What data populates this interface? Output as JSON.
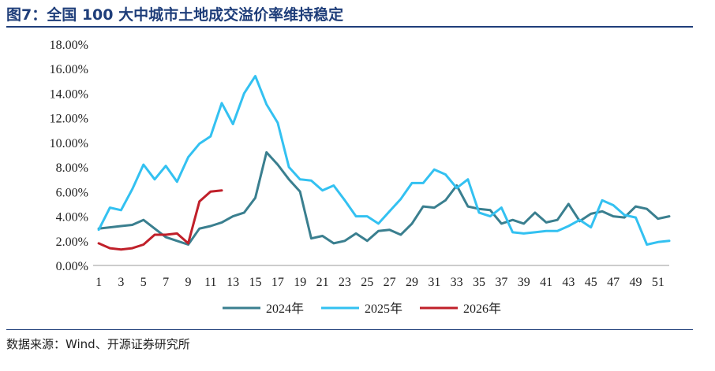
{
  "header": {
    "title": "图7：全国 100 大中城市土地成交溢价率维持稳定"
  },
  "footer": {
    "source": "数据来源：Wind、开源证券研究所"
  },
  "chart_data": {
    "type": "line",
    "title": "图7：全国 100 大中城市土地成交溢价率维持稳定",
    "xlabel": "",
    "ylabel": "",
    "ylim": [
      0,
      18
    ],
    "y_ticks": [
      "0.00%",
      "2.00%",
      "4.00%",
      "6.00%",
      "8.00%",
      "10.00%",
      "12.00%",
      "14.00%",
      "16.00%",
      "18.00%"
    ],
    "x_ticks": [
      "1",
      "3",
      "5",
      "7",
      "9",
      "11",
      "13",
      "15",
      "17",
      "19",
      "21",
      "23",
      "25",
      "27",
      "29",
      "31",
      "33",
      "35",
      "37",
      "39",
      "41",
      "43",
      "45",
      "47",
      "49",
      "51"
    ],
    "legend_position": "bottom",
    "grid": false,
    "series": [
      {
        "name": "2024年",
        "color": "#3a7f8f",
        "values": [
          3.0,
          3.1,
          3.2,
          3.3,
          3.7,
          3.0,
          2.3,
          2.0,
          1.7,
          3.0,
          3.2,
          3.5,
          4.0,
          4.3,
          5.5,
          9.2,
          8.2,
          7.0,
          6.0,
          2.2,
          2.4,
          1.8,
          2.0,
          2.6,
          2.0,
          2.8,
          2.9,
          2.5,
          3.4,
          4.8,
          4.7,
          5.3,
          6.5,
          4.8,
          4.6,
          4.5,
          3.4,
          3.7,
          3.4,
          4.3,
          3.5,
          3.7,
          5.0,
          3.6,
          4.2,
          4.4,
          4.0,
          3.9,
          4.8,
          4.6,
          3.8,
          4.0
        ]
      },
      {
        "name": "2025年",
        "color": "#33c1f1",
        "values": [
          2.9,
          4.7,
          4.5,
          6.2,
          8.2,
          7.0,
          8.1,
          6.8,
          8.8,
          9.9,
          10.5,
          13.2,
          11.5,
          14.0,
          15.4,
          13.1,
          11.6,
          8.0,
          7.0,
          6.9,
          6.1,
          6.5,
          5.3,
          4.0,
          4.0,
          3.4,
          4.4,
          5.4,
          6.7,
          6.7,
          7.8,
          7.4,
          6.3,
          7.0,
          4.3,
          4.0,
          4.7,
          2.7,
          2.6,
          2.7,
          2.8,
          2.8,
          3.2,
          3.7,
          3.1,
          5.3,
          4.9,
          4.1,
          3.9,
          1.7,
          1.9,
          2.0
        ]
      },
      {
        "name": "2026年",
        "color": "#c0202a",
        "values": [
          1.8,
          1.4,
          1.3,
          1.4,
          1.7,
          2.5,
          2.5,
          2.6,
          1.8,
          5.2,
          6.0,
          6.1
        ]
      }
    ]
  }
}
